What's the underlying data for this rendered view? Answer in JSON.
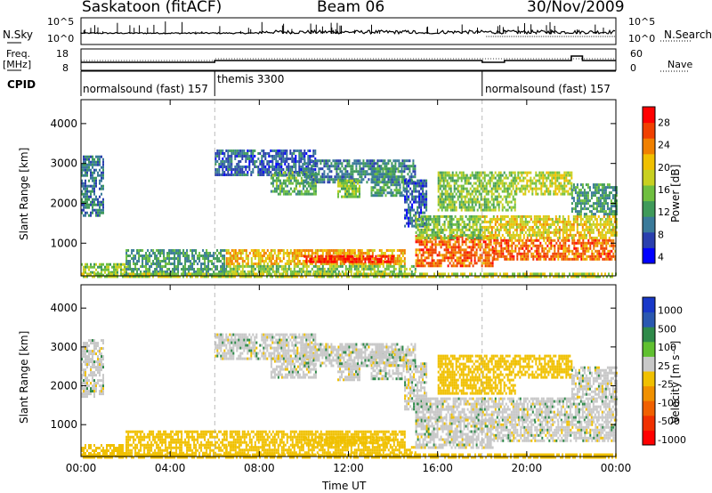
{
  "header": {
    "title": "Saskatoon (fitACF)",
    "beam": "Beam 06",
    "date": "30/Nov/2009"
  },
  "side_labels": {
    "nsky": "N.Sky",
    "freq": "Freq.",
    "freq_unit": "[MHz]",
    "cpid": "CPID",
    "nsearch": "N.Search",
    "nave": "Nave"
  },
  "strip_axes": {
    "nsky_top": "10^5",
    "nsky_bottom": "10^0",
    "nsearch_top": "10^5",
    "nsearch_bottom": "10^0",
    "freq_top": "18",
    "freq_bottom": "8",
    "nave_top": "60",
    "nave_bottom": "0"
  },
  "cpid_segments": [
    {
      "label": "normalsound (fast) 157",
      "start_hour": 0
    },
    {
      "label": "themis 3300",
      "start_hour": 6
    },
    {
      "label": "normalsound (fast) 157",
      "start_hour": 18
    }
  ],
  "chart_data": {
    "type": "heatmap",
    "x": {
      "label": "Time UT",
      "range": [
        0,
        24
      ],
      "ticks": [
        "00:00",
        "04:00",
        "08:00",
        "12:00",
        "16:00",
        "20:00",
        "00:00"
      ],
      "tick_hours": [
        0,
        4,
        8,
        12,
        16,
        20,
        24
      ]
    },
    "y": {
      "label": "Slant Range [km]",
      "range": [
        180,
        4600
      ],
      "ticks": [
        1000,
        2000,
        3000,
        4000
      ]
    },
    "panels": [
      {
        "name": "power",
        "colorbar_label": "Power [dB]",
        "colorbar_ticks": [
          "28",
          "24",
          "20",
          "16",
          "12",
          "8",
          "4"
        ],
        "colors": [
          "#0000ff",
          "#2a3fae",
          "#3a7a9a",
          "#3f9a5a",
          "#6fbf40",
          "#c8d020",
          "#f0c000",
          "#f08000",
          "#f04000",
          "#ff0000"
        ]
      },
      {
        "name": "velocity",
        "colorbar_label": "Velocity [m s⁻¹]",
        "colorbar_ticks": [
          "1000",
          "500",
          "100",
          "25",
          "-25",
          "-100",
          "-500",
          "-1000"
        ],
        "colors": [
          "#1838c8",
          "#2a58b0",
          "#2f8a4a",
          "#60c030",
          "#c8c8c8",
          "#f0c000",
          "#f09000",
          "#f06000",
          "#f03000",
          "#ff0000"
        ]
      }
    ],
    "echo_regions": [
      {
        "t0": 0.0,
        "t1": 1.0,
        "r0": 1700,
        "r1": 3200,
        "power": 8,
        "velocity": 0
      },
      {
        "t0": 0.0,
        "t1": 2.0,
        "r0": 200,
        "r1": 500,
        "power": 14,
        "velocity": -60
      },
      {
        "t0": 2.0,
        "t1": 6.5,
        "r0": 200,
        "r1": 850,
        "power": 10,
        "velocity": -120
      },
      {
        "t0": 6.5,
        "t1": 14.5,
        "r0": 450,
        "r1": 850,
        "power": 20,
        "velocity": -150
      },
      {
        "t0": 10.0,
        "t1": 14.0,
        "r0": 550,
        "r1": 700,
        "power": 28,
        "velocity": -200
      },
      {
        "t0": 6.5,
        "t1": 15.0,
        "r0": 200,
        "r1": 450,
        "power": 14,
        "velocity": -80
      },
      {
        "t0": 6.0,
        "t1": 10.5,
        "r0": 2700,
        "r1": 3350,
        "power": 6,
        "velocity": 0
      },
      {
        "t0": 8.5,
        "t1": 10.5,
        "r0": 2200,
        "r1": 2800,
        "power": 12,
        "velocity": 0
      },
      {
        "t0": 10.0,
        "t1": 15.0,
        "r0": 2500,
        "r1": 3100,
        "power": 8,
        "velocity": 0
      },
      {
        "t0": 11.5,
        "t1": 12.5,
        "r0": 2150,
        "r1": 2600,
        "power": 14,
        "velocity": 0
      },
      {
        "t0": 13.0,
        "t1": 14.5,
        "r0": 2200,
        "r1": 2900,
        "power": 10,
        "velocity": 0
      },
      {
        "t0": 14.5,
        "t1": 15.5,
        "r0": 1400,
        "r1": 2600,
        "power": 6,
        "velocity": 0
      },
      {
        "t0": 15.0,
        "t1": 18.5,
        "r0": 400,
        "r1": 1200,
        "power": 24,
        "velocity": 0
      },
      {
        "t0": 15.0,
        "t1": 18.0,
        "r0": 1100,
        "r1": 1700,
        "power": 14,
        "velocity": 0
      },
      {
        "t0": 16.0,
        "t1": 19.5,
        "r0": 1800,
        "r1": 2800,
        "power": 14,
        "velocity": -200
      },
      {
        "t0": 18.0,
        "t1": 24.0,
        "r0": 1100,
        "r1": 1700,
        "power": 18,
        "velocity": 0
      },
      {
        "t0": 18.5,
        "t1": 24.0,
        "r0": 600,
        "r1": 1100,
        "power": 24,
        "velocity": 0
      },
      {
        "t0": 19.5,
        "t1": 22.0,
        "r0": 2200,
        "r1": 2800,
        "power": 16,
        "velocity": -80
      },
      {
        "t0": 22.0,
        "t1": 24.0,
        "r0": 1700,
        "r1": 2500,
        "power": 10,
        "velocity": 0
      },
      {
        "t0": 0.0,
        "t1": 24.0,
        "r0": 180,
        "r1": 260,
        "power": 16,
        "velocity": -60
      }
    ]
  }
}
